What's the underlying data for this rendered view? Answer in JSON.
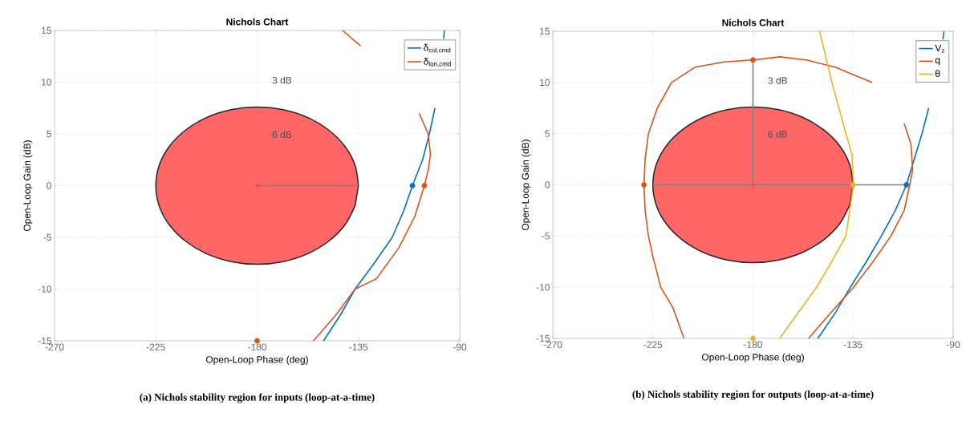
{
  "chart_data": [
    {
      "type": "line",
      "title": "Nichols Chart",
      "xlabel": "Open-Loop Phase (deg)",
      "ylabel": "Open-Loop Gain (dB)",
      "xlim": [
        -270,
        -90
      ],
      "ylim": [
        -15,
        15
      ],
      "xticks": [
        -270,
        -225,
        -180,
        -135,
        -90
      ],
      "yticks": [
        -15,
        -10,
        -5,
        0,
        5,
        10,
        15
      ],
      "grid": true,
      "legend": "top right",
      "annotations": [
        "3 dB",
        "6 dB",
        "(a) Nichols stability region for inputs (loop-at-a-time)"
      ],
      "series": [
        {
          "type": "area",
          "color": "#ff6666",
          "x": [
            -135,
            -136.5,
            -141,
            -148.2,
            -157.5,
            -168.4,
            -180,
            -191.6,
            -202.5,
            -211.8,
            -219,
            -223.5,
            -225,
            -223.5,
            -219,
            -211.8,
            -202.5,
            -191.6,
            -180,
            -168.4,
            -157.5,
            -148.2,
            -141,
            -136.5
          ],
          "values": [
            0,
            1.97,
            3.8,
            5.37,
            6.58,
            7.34,
            7.6,
            7.34,
            6.58,
            5.37,
            3.8,
            1.97,
            0,
            -1.97,
            -3.8,
            -5.37,
            -6.58,
            -7.34,
            -7.6,
            -7.34,
            -6.58,
            -5.37,
            -3.8,
            -1.97
          ]
        },
        {
          "color": "#808080",
          "x": [
            -180,
            -135
          ],
          "values": [
            0,
            0
          ]
        },
        {
          "name": "δ$_{col,cmd}$",
          "color": "#0072bd",
          "x": [
            -150.5,
            -143,
            -136.5,
            -128,
            -120,
            -115,
            -111,
            -106.5,
            -103.5,
            -101,
            -99.5,
            -97.2,
            -96.8
          ],
          "values": [
            -15,
            -12.5,
            -10,
            -7.5,
            -5,
            -2.5,
            0,
            2.5,
            5,
            7.5,
            null,
            14.2,
            15
          ]
        },
        {
          "name": "δ$_{lon,cmd}$",
          "color": "#d95319",
          "x": [
            -155,
            -145,
            -136.5,
            -127,
            -117,
            -110,
            -105.7,
            -104,
            -103,
            -104,
            -108,
            -115,
            -122,
            -134,
            -142
          ],
          "values": [
            -15,
            -12.5,
            -10,
            -9,
            -6,
            -3,
            0,
            1.5,
            3,
            5,
            7,
            null,
            null,
            13.5,
            15
          ]
        },
        {
          "type": "scatter",
          "marker": "cross",
          "color": "#ff0000",
          "x": [
            -180
          ],
          "values": [
            0
          ]
        },
        {
          "type": "scatter",
          "marker": "circle",
          "color": "#0072bd",
          "x": [
            -111
          ],
          "values": [
            0
          ]
        },
        {
          "type": "scatter",
          "marker": "circle",
          "color": "#d95319",
          "x": [
            -105.7,
            -180
          ],
          "values": [
            0,
            -15
          ]
        }
      ]
    },
    {
      "type": "line",
      "title": "Nichols Chart",
      "xlabel": "Open-Loop Phase (deg)",
      "ylabel": "Open-Loop Gain (dB)",
      "xlim": [
        -270,
        -90
      ],
      "ylim": [
        -15,
        15
      ],
      "xticks": [
        -270,
        -225,
        -180,
        -135,
        -90
      ],
      "yticks": [
        -15,
        -10,
        -5,
        0,
        5,
        10,
        15
      ],
      "grid": true,
      "legend": "top right",
      "annotations": [
        "3 dB",
        "6 dB",
        "(b) Nichols stability region for outputs (loop-at-a-time)"
      ],
      "series": [
        {
          "type": "area",
          "color": "#ff6666",
          "x": [
            -135,
            -136.5,
            -141,
            -148.2,
            -157.5,
            -168.4,
            -180,
            -191.6,
            -202.5,
            -211.8,
            -219,
            -223.5,
            -225,
            -223.5,
            -219,
            -211.8,
            -202.5,
            -191.6,
            -180,
            -168.4,
            -157.5,
            -148.2,
            -141,
            -136.5
          ],
          "values": [
            0,
            1.97,
            3.8,
            5.37,
            6.58,
            7.34,
            7.6,
            7.34,
            6.58,
            5.37,
            3.8,
            1.97,
            0,
            -1.97,
            -3.8,
            -5.37,
            -6.58,
            -7.34,
            -7.6,
            -7.34,
            -6.58,
            -5.37,
            -3.8,
            -1.97
          ]
        },
        {
          "color": "#808080",
          "x": [
            -225,
            -111
          ],
          "values": [
            0,
            0
          ]
        },
        {
          "color": "#808080",
          "x": [
            -180,
            -180
          ],
          "values": [
            0,
            12.2
          ]
        },
        {
          "name": "V$_{z}$",
          "color": "#0072bd",
          "x": [
            -150.8,
            -143,
            -136.2,
            -129,
            -122.3,
            -116,
            -111,
            -107.5,
            -104,
            -101,
            -98.7,
            -94.6,
            -94.1
          ],
          "values": [
            -15,
            -12.5,
            -10,
            -7.5,
            -5,
            -2.5,
            0,
            2.5,
            5,
            7.5,
            null,
            14.2,
            15
          ]
        },
        {
          "name": "q",
          "color": "#d95319",
          "x": [
            -211,
            -216,
            -221.5,
            -225,
            -227,
            -228.5,
            -229,
            -228.5,
            -227,
            -223,
            -216.6,
            -206,
            -193,
            -180,
            -168,
            -156,
            -143,
            -132,
            -126.5,
            -117,
            -112,
            -109,
            -108.2,
            -109.5,
            -112,
            -118,
            -126,
            -134.8,
            -145,
            -155
          ],
          "values": [
            -15,
            -12,
            -10,
            -7,
            -5,
            -2.5,
            0,
            2.5,
            5,
            7.5,
            10,
            11.5,
            12,
            12.2,
            12.5,
            12.2,
            11.5,
            10.5,
            10,
            null,
            6,
            4,
            1.5,
            0,
            -2.5,
            -5,
            -7.5,
            -10,
            -12.5,
            -15
          ]
        },
        {
          "name": "θ",
          "color": "#edb120",
          "x": [
            -168,
            -151.4,
            -145.9,
            -138.2,
            -134.8,
            -135.5,
            -138.2,
            -144.5,
            -150
          ],
          "values": [
            -15,
            -10,
            -8,
            -5,
            0,
            3,
            5,
            10,
            15
          ]
        },
        {
          "type": "scatter",
          "marker": "cross",
          "color": "#ff0000",
          "x": [
            -180
          ],
          "values": [
            0
          ]
        },
        {
          "type": "scatter",
          "marker": "circle",
          "color": "#d95319",
          "x": [
            -229,
            -180
          ],
          "values": [
            0,
            12.2
          ]
        },
        {
          "type": "scatter",
          "marker": "circle",
          "color": "#edb120",
          "x": [
            -135,
            -180
          ],
          "values": [
            0,
            -15
          ]
        },
        {
          "type": "scatter",
          "marker": "circle",
          "color": "#0072bd",
          "x": [
            -111
          ],
          "values": [
            0
          ]
        }
      ]
    }
  ]
}
